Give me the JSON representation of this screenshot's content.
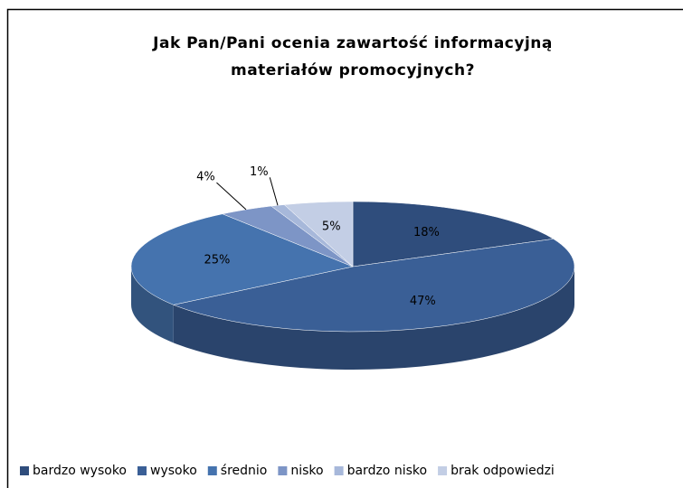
{
  "chart_data": {
    "type": "pie3d",
    "title": [
      "Jak Pan/Pani ocenia zawartość informacyjną",
      "materiałów promocyjnych?"
    ],
    "categories": [
      "bardzo wysoko",
      "wysoko",
      "średnio",
      "nisko",
      "bardzo nisko",
      "brak odpowiedzi"
    ],
    "values": [
      18,
      47,
      25,
      4,
      1,
      5
    ],
    "value_labels": [
      "18%",
      "47%",
      "25%",
      "4%",
      "1%",
      "5%"
    ],
    "colors": [
      "#2f4d7c",
      "#3a5f96",
      "#4573ae",
      "#7d95c6",
      "#a7b8da",
      "#c3cee5"
    ],
    "legend": "bottom"
  }
}
